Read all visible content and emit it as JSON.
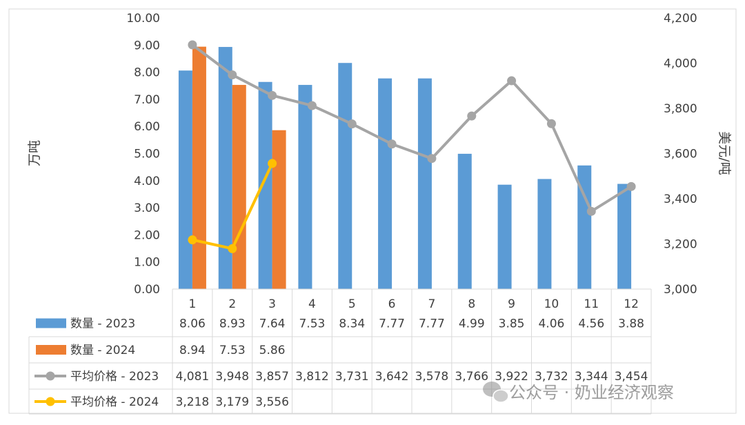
{
  "chart_data": {
    "type": "bar",
    "categories": [
      "1",
      "2",
      "3",
      "4",
      "5",
      "6",
      "7",
      "8",
      "9",
      "10",
      "11",
      "12"
    ],
    "y_left": {
      "label": "万吨",
      "ticks": [
        "0.00",
        "1.00",
        "2.00",
        "3.00",
        "4.00",
        "5.00",
        "6.00",
        "7.00",
        "8.00",
        "9.00",
        "10.00"
      ],
      "range": [
        0,
        10
      ]
    },
    "y_right": {
      "label": "美元/吨",
      "ticks": [
        "3,000",
        "3,200",
        "3,400",
        "3,600",
        "3,800",
        "4,000",
        "4,200"
      ],
      "range": [
        3000,
        4200
      ]
    },
    "series": [
      {
        "name": "数量 - 2023",
        "type": "bar",
        "axis": "left",
        "color": "#5b9bd5",
        "values": [
          8.06,
          8.93,
          7.64,
          7.53,
          8.34,
          7.77,
          7.77,
          4.99,
          3.85,
          4.06,
          4.56,
          3.88
        ],
        "labels": [
          "8.06",
          "8.93",
          "7.64",
          "7.53",
          "8.34",
          "7.77",
          "7.77",
          "4.99",
          "3.85",
          "4.06",
          "4.56",
          "3.88"
        ]
      },
      {
        "name": "数量 - 2024",
        "type": "bar",
        "axis": "left",
        "color": "#ed7d31",
        "values": [
          8.94,
          7.53,
          5.86,
          null,
          null,
          null,
          null,
          null,
          null,
          null,
          null,
          null
        ],
        "labels": [
          "8.94",
          "7.53",
          "5.86",
          "",
          "",
          "",
          "",
          "",
          "",
          "",
          "",
          ""
        ]
      },
      {
        "name": "平均价格 - 2023",
        "type": "line",
        "axis": "right",
        "color": "#a5a5a5",
        "values": [
          4081,
          3948,
          3857,
          3812,
          3731,
          3642,
          3578,
          3766,
          3922,
          3732,
          3344,
          3454
        ],
        "labels": [
          "4,081",
          "3,948",
          "3,857",
          "3,812",
          "3,731",
          "3,642",
          "3,578",
          "3,766",
          "3,922",
          "3,732",
          "3,344",
          "3,454"
        ]
      },
      {
        "name": "平均价格 - 2024",
        "type": "line",
        "axis": "right",
        "color": "#ffc000",
        "values": [
          3218,
          3179,
          3556,
          null,
          null,
          null,
          null,
          null,
          null,
          null,
          null,
          null
        ],
        "labels": [
          "3,218",
          "3,179",
          "3,556",
          "",
          "",
          "",
          "",
          "",
          "",
          "",
          "",
          ""
        ]
      }
    ],
    "legend": "data-table",
    "grid": false
  },
  "watermark": {
    "icon": "wechat-icon",
    "text": "公众号 · 奶业经济观察"
  }
}
